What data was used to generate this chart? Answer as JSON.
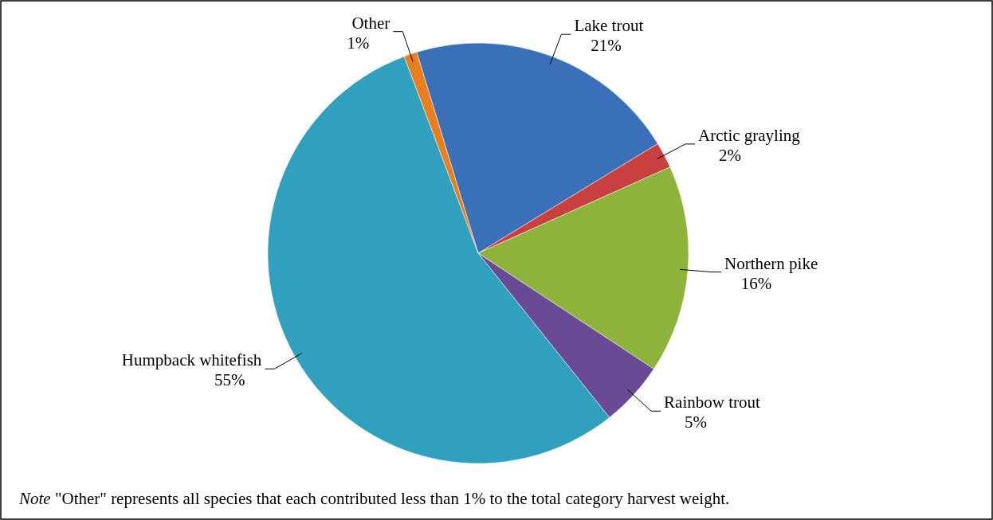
{
  "chart_data": {
    "type": "pie",
    "categories": [
      "Lake trout",
      "Arctic grayling",
      "Northern pike",
      "Rainbow trout",
      "Humpback whitefish",
      "Other"
    ],
    "values": [
      21,
      2,
      16,
      5,
      55,
      1
    ],
    "value_labels": [
      "21%",
      "2%",
      "16%",
      "5%",
      "55%",
      "1%"
    ],
    "colors": [
      "#3a70b8",
      "#c94040",
      "#8db33a",
      "#6a4a94",
      "#31a0be",
      "#e87e1e"
    ],
    "annotations": [
      "Note \"Other\" represents all species that each contributed less than 1% to the total category harvest weight."
    ]
  }
}
